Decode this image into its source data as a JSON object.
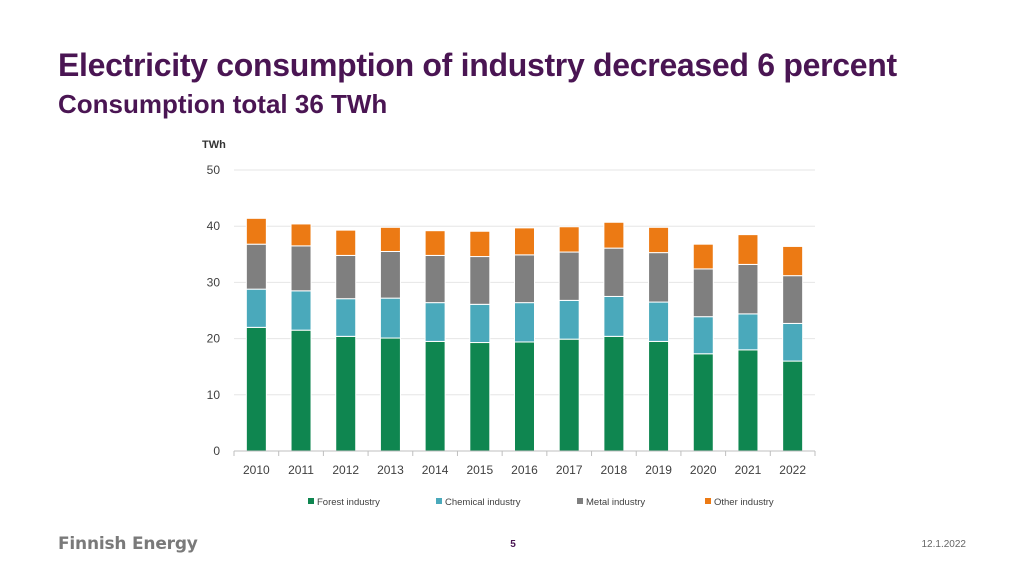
{
  "slide": {
    "title": "Electricity consumption of industry decreased 6 percent",
    "subtitle": "Consumption total 36 TWh"
  },
  "colors": {
    "title": "#4a1553",
    "forest": "#0f8650",
    "chemical": "#4aa9bb",
    "metal": "#7f7f7f",
    "other": "#ec7a14"
  },
  "chart_data": {
    "type": "bar",
    "stacked": true,
    "title": "",
    "ylabel": "TWh",
    "xlabel": "",
    "ylim": [
      0,
      50
    ],
    "yticks": [
      0,
      10,
      20,
      30,
      40,
      50
    ],
    "grid": true,
    "legend_position": "bottom",
    "categories": [
      "2010",
      "2011",
      "2012",
      "2013",
      "2014",
      "2015",
      "2016",
      "2017",
      "2018",
      "2019",
      "2020",
      "2021",
      "2022"
    ],
    "series": [
      {
        "name": "Forest industry",
        "color": "#0f8650",
        "values": [
          22.0,
          21.5,
          20.4,
          20.1,
          19.5,
          19.3,
          19.4,
          19.9,
          20.4,
          19.5,
          17.3,
          18.0,
          16.0
        ]
      },
      {
        "name": "Chemical industry",
        "color": "#4aa9bb",
        "values": [
          6.8,
          7.0,
          6.7,
          7.1,
          6.9,
          6.8,
          7.0,
          6.9,
          7.1,
          7.0,
          6.6,
          6.4,
          6.7
        ]
      },
      {
        "name": "Metal industry",
        "color": "#7f7f7f",
        "values": [
          8.0,
          8.0,
          7.7,
          8.3,
          8.4,
          8.5,
          8.5,
          8.6,
          8.6,
          8.8,
          8.5,
          8.8,
          8.5
        ]
      },
      {
        "name": "Other industry",
        "color": "#ec7a14",
        "values": [
          4.6,
          3.9,
          4.5,
          4.3,
          4.4,
          4.5,
          4.8,
          4.5,
          4.6,
          4.5,
          4.4,
          5.3,
          5.2
        ]
      }
    ]
  },
  "footer": {
    "logo": "Finnish Energy",
    "page": "5",
    "date": "12.1.2022"
  }
}
